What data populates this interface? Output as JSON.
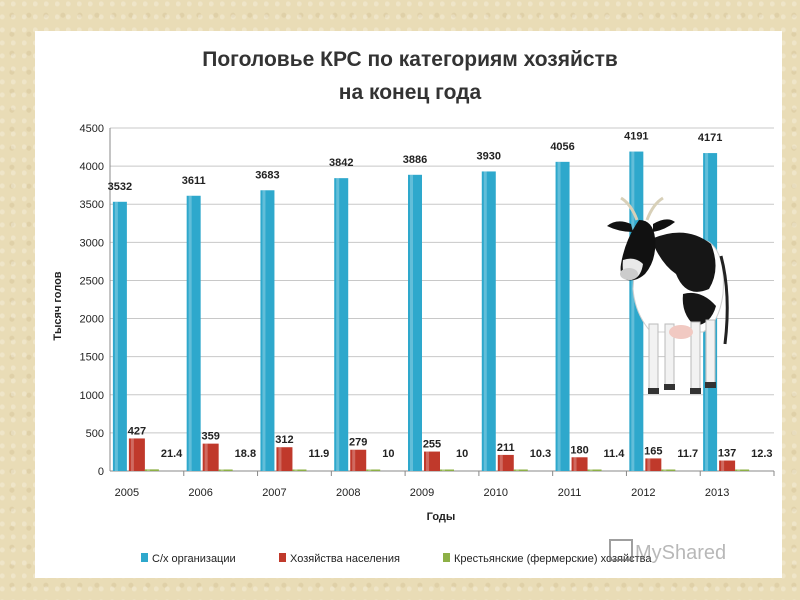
{
  "chart_data": {
    "type": "bar",
    "title_lines": [
      "Поголовье КРС по категориям хозяйств",
      "на конец года"
    ],
    "categories": [
      "2005",
      "2006",
      "2007",
      "2008",
      "2009",
      "2010",
      "2011",
      "2012",
      "2013"
    ],
    "series": [
      {
        "name": "С/х организации",
        "values": [
          3532,
          3611,
          3683,
          3842,
          3886,
          3930,
          4056,
          4191,
          4171
        ],
        "color": "#2ea8cc"
      },
      {
        "name": "Хозяйства населения",
        "values": [
          427,
          359,
          312,
          279,
          255,
          211,
          180,
          165,
          137
        ],
        "color": "#c0392b"
      },
      {
        "name": "Крестьянские (фермерские) хозяйства",
        "values": [
          21.4,
          18.8,
          11.9,
          10,
          10,
          10.3,
          11.4,
          11.7,
          12.3
        ],
        "color": "#8db046"
      }
    ],
    "xlabel": "Годы",
    "ylabel": "Тысяч голов",
    "ylim": [
      0,
      4500
    ],
    "yticks": [
      0,
      500,
      1000,
      1500,
      2000,
      2500,
      3000,
      3500,
      4000,
      4500
    ],
    "grid": true,
    "legend_position": "bottom"
  },
  "watermark": "MyShared",
  "cow_image": "cow-photo"
}
